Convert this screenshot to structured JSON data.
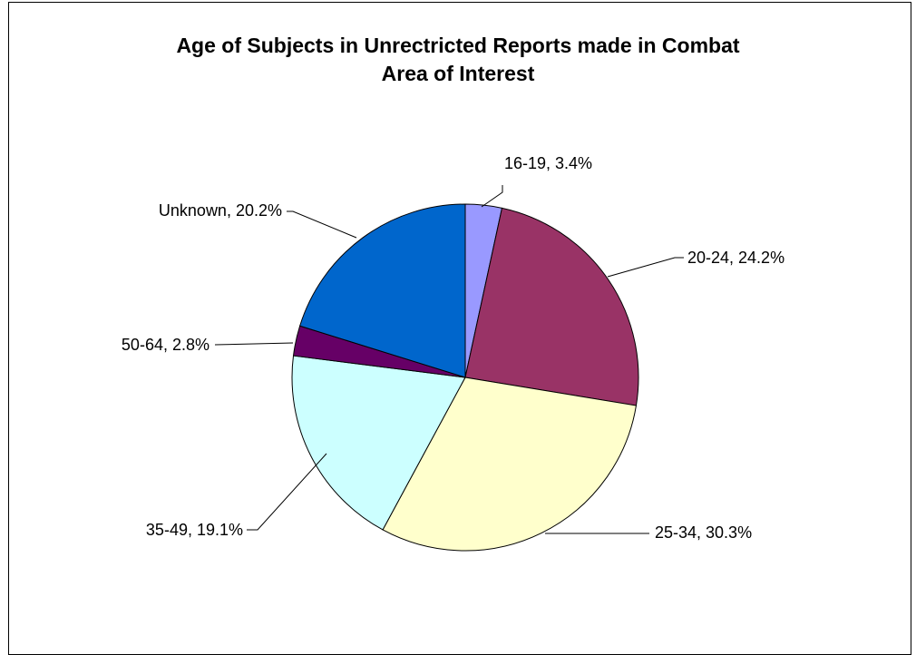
{
  "chart_data": {
    "type": "pie",
    "title_lines": [
      "Age of Subjects in Unrectricted Reports made in Combat",
      "Area of Interest"
    ],
    "slices": [
      {
        "category": "16-19",
        "value": 3.4,
        "label": "16-19, 3.4%",
        "color": "#9999FF"
      },
      {
        "category": "20-24",
        "value": 24.2,
        "label": "20-24, 24.2%",
        "color": "#993366"
      },
      {
        "category": "25-34",
        "value": 30.3,
        "label": "25-34, 30.3%",
        "color": "#FFFFCC"
      },
      {
        "category": "35-49",
        "value": 19.1,
        "label": "35-49, 19.1%",
        "color": "#CCFFFF"
      },
      {
        "category": "50-64",
        "value": 2.8,
        "label": "50-64, 2.8%",
        "color": "#660066"
      },
      {
        "category": "Unknown",
        "value": 20.2,
        "label": "Unknown, 20.2%",
        "color": "#0066CC"
      }
    ]
  }
}
